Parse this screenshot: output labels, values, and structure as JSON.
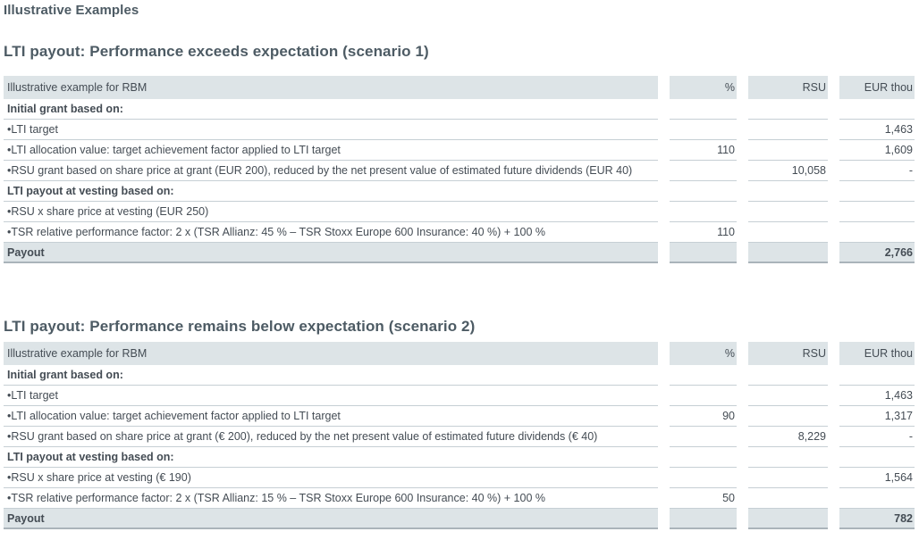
{
  "page_title": "Illustrative Examples",
  "colors": {
    "header_row_bg": "#dde4e7",
    "row_border": "#c6cfd4",
    "payout_bottom_border": "#aab4ba",
    "heading_text": "#4d5b64",
    "body_text": "#444c54"
  },
  "tables": [
    {
      "heading": "LTI payout: Performance exceeds expectation (scenario 1)",
      "corner_label": "Illustrative example for RBM",
      "col_headers": [
        "%",
        "RSU",
        "EUR thou"
      ],
      "rows": [
        {
          "type": "section",
          "label": "Initial grant based on:",
          "pct": "",
          "rsu": "",
          "eur": ""
        },
        {
          "type": "bullet",
          "label": "•LTI target",
          "pct": "",
          "rsu": "",
          "eur": "1,463"
        },
        {
          "type": "bullet",
          "label": "•LTI allocation value: target achievement factor applied to LTI target",
          "pct": "110",
          "rsu": "",
          "eur": "1,609"
        },
        {
          "type": "bullet",
          "label": "•RSU grant based on share price at grant (EUR 200), reduced by the net present value of estimated future dividends (EUR 40)",
          "pct": "",
          "rsu": "10,058",
          "eur": "-"
        },
        {
          "type": "section",
          "label": "LTI payout at vesting based on:",
          "pct": "",
          "rsu": "",
          "eur": ""
        },
        {
          "type": "bullet",
          "label": "•RSU x share price at vesting (EUR 250)",
          "pct": "",
          "rsu": "",
          "eur": ""
        },
        {
          "type": "bullet",
          "label": "•TSR relative performance factor: 2 x (TSR Allianz: 45 % – TSR Stoxx Europe 600 Insurance: 40 %) + 100 %",
          "pct": "110",
          "rsu": "",
          "eur": ""
        },
        {
          "type": "payout",
          "label": "Payout",
          "pct": "",
          "rsu": "",
          "eur": "2,766"
        }
      ]
    },
    {
      "heading": "LTI payout: Performance remains below expectation (scenario 2)",
      "corner_label": "Illustrative example for RBM",
      "col_headers": [
        "%",
        "RSU",
        "EUR thou"
      ],
      "rows": [
        {
          "type": "section",
          "label": "Initial grant based on:",
          "pct": "",
          "rsu": "",
          "eur": ""
        },
        {
          "type": "bullet",
          "label": "•LTI target",
          "pct": "",
          "rsu": "",
          "eur": "1,463"
        },
        {
          "type": "bullet",
          "label": "•LTI allocation value: target achievement factor applied to LTI target",
          "pct": "90",
          "rsu": "",
          "eur": "1,317"
        },
        {
          "type": "bullet",
          "label": "•RSU grant based on share price at grant (€ 200), reduced by the net present value of estimated future dividends (€ 40)",
          "pct": "",
          "rsu": "8,229",
          "eur": "-"
        },
        {
          "type": "section",
          "label": "LTI payout at vesting based on:",
          "pct": "",
          "rsu": "",
          "eur": ""
        },
        {
          "type": "bullet",
          "label": "•RSU x share price at vesting (€ 190)",
          "pct": "",
          "rsu": "",
          "eur": "1,564"
        },
        {
          "type": "bullet",
          "label": "•TSR relative performance factor: 2 x (TSR Allianz: 15 % – TSR Stoxx Europe 600 Insurance: 40 %) + 100 %",
          "pct": "50",
          "rsu": "",
          "eur": ""
        },
        {
          "type": "payout",
          "label": "Payout",
          "pct": "",
          "rsu": "",
          "eur": "782"
        }
      ]
    }
  ]
}
